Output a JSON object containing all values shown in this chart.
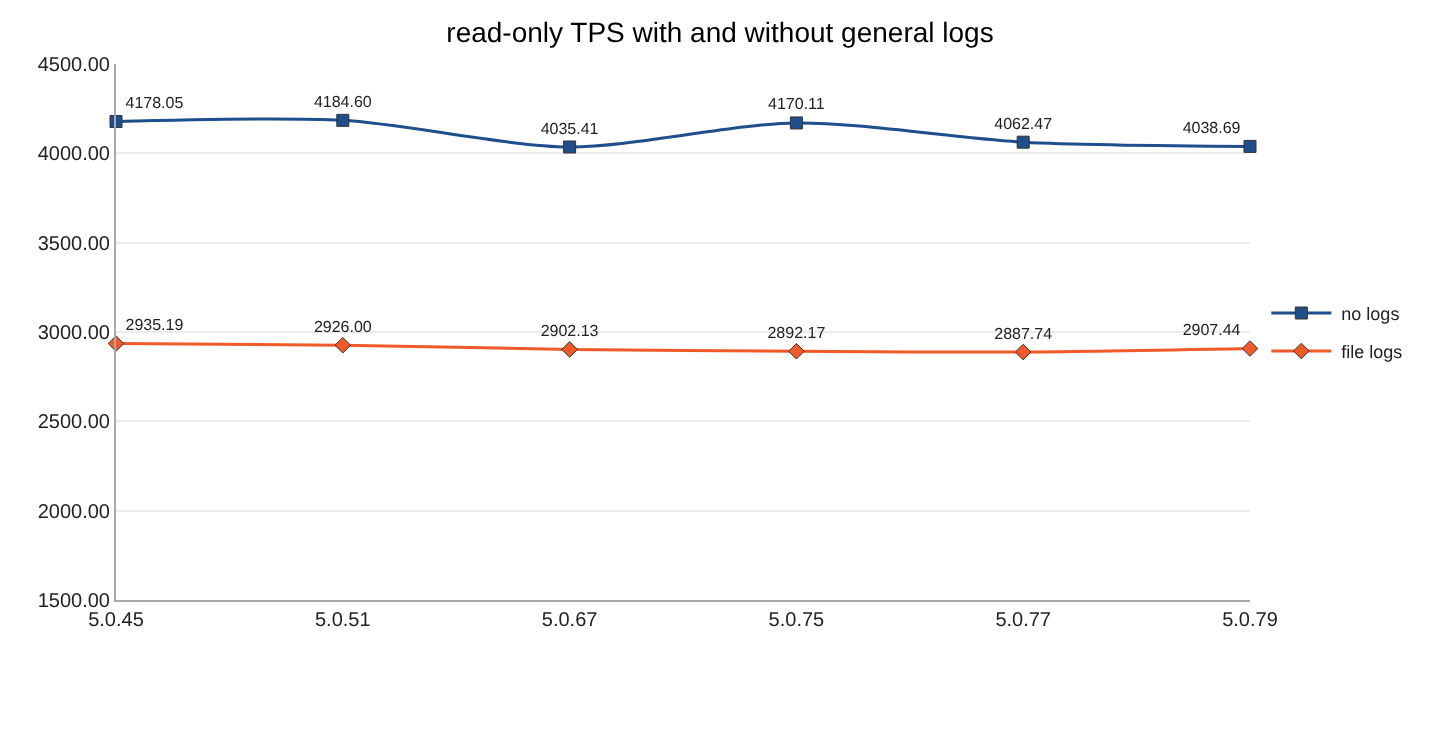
{
  "chart_data": {
    "type": "line",
    "title": "read-only TPS with and without general logs",
    "categories": [
      "5.0.45",
      "5.0.51",
      "5.0.67",
      "5.0.75",
      "5.0.77",
      "5.0.79"
    ],
    "series": [
      {
        "name": "no logs",
        "color": "#1f4e8c",
        "marker": "square",
        "values": [
          4178.05,
          4184.6,
          4035.41,
          4170.11,
          4062.47,
          4038.69
        ],
        "value_labels": [
          "4178.05",
          "4184.60",
          "4035.41",
          "4170.11",
          "4062.47",
          "4038.69"
        ]
      },
      {
        "name": "file logs",
        "color": "#f05a28",
        "marker": "diamond",
        "values": [
          2935.19,
          2926.0,
          2902.13,
          2892.17,
          2887.74,
          2907.44
        ],
        "value_labels": [
          "2935.19",
          "2926.00",
          "2902.13",
          "2892.17",
          "2887.74",
          "2907.44"
        ]
      }
    ],
    "ylim": [
      1500,
      4500
    ],
    "yticks": [
      {
        "value": 1500,
        "label": "1500.00"
      },
      {
        "value": 2000,
        "label": "2000.00"
      },
      {
        "value": 2500,
        "label": "2500.00"
      },
      {
        "value": 3000,
        "label": "3000.00"
      },
      {
        "value": 3500,
        "label": "3500.00"
      },
      {
        "value": 4000,
        "label": "4000.00"
      },
      {
        "value": 4500,
        "label": "4500.00"
      }
    ],
    "grid": "y",
    "legend": "right",
    "line_style": "solid"
  }
}
